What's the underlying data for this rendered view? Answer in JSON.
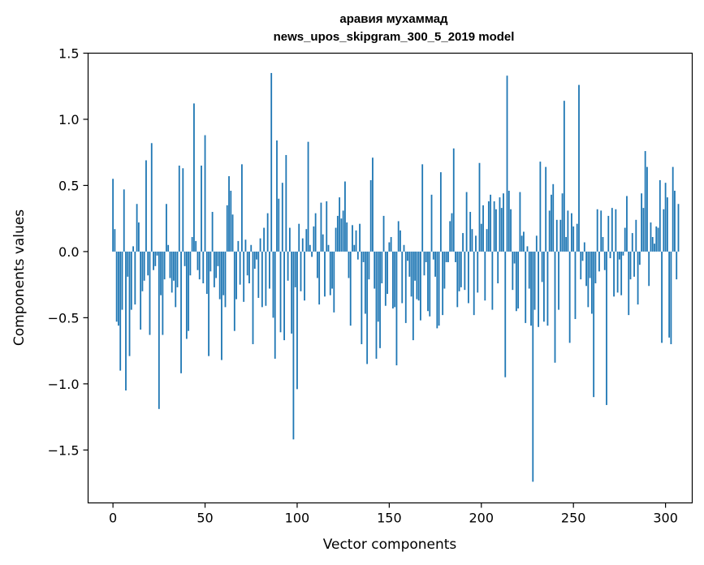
{
  "chart_data": {
    "type": "bar",
    "title": "аравия мухаммад",
    "subtitle": "news_upos_skipgram_300_5_2019 model",
    "xlabel": "Vector components",
    "ylabel": "Components values",
    "xlim": [
      -13.5,
      314.5
    ],
    "ylim": [
      -1.9,
      1.5
    ],
    "xticks": [
      0,
      50,
      100,
      150,
      200,
      250,
      300
    ],
    "xtick_labels": [
      "0",
      "50",
      "100",
      "150",
      "200",
      "250",
      "300"
    ],
    "yticks": [
      -1.5,
      -1.0,
      -0.5,
      0.0,
      0.5,
      1.0,
      1.5
    ],
    "ytick_labels": [
      "−1.5",
      "−1.0",
      "−0.5",
      "0.0",
      "0.5",
      "1.0",
      "1.5"
    ],
    "bar_color": "#1f77b4",
    "grid": false,
    "values": [
      0.55,
      0.17,
      -0.53,
      -0.56,
      -0.9,
      -0.44,
      0.47,
      -1.05,
      -0.19,
      -0.79,
      -0.44,
      0.04,
      -0.4,
      0.36,
      0.22,
      -0.59,
      -0.3,
      -0.22,
      0.69,
      -0.18,
      -0.63,
      0.82,
      -0.14,
      -0.11,
      -0.03,
      -1.19,
      -0.33,
      -0.63,
      -0.21,
      0.36,
      0.05,
      -0.2,
      -0.31,
      -0.22,
      -0.42,
      -0.27,
      0.65,
      -0.92,
      0.63,
      -0.11,
      -0.66,
      -0.6,
      -0.18,
      0.11,
      1.12,
      0.08,
      -0.14,
      -0.21,
      0.65,
      -0.24,
      0.88,
      -0.32,
      -0.79,
      -0.15,
      0.3,
      -0.27,
      -0.2,
      -0.11,
      -0.36,
      -0.82,
      -0.33,
      -0.42,
      0.35,
      0.57,
      0.46,
      0.28,
      -0.6,
      -0.36,
      0.08,
      -0.25,
      0.66,
      -0.38,
      0.09,
      -0.18,
      -0.24,
      0.05,
      -0.7,
      -0.13,
      -0.06,
      -0.35,
      0.1,
      -0.42,
      0.18,
      -0.41,
      0.29,
      -0.28,
      1.35,
      -0.5,
      -0.81,
      0.84,
      0.4,
      -0.61,
      0.52,
      -0.67,
      0.73,
      -0.22,
      0.18,
      -0.62,
      -1.42,
      -0.27,
      -1.04,
      0.21,
      -0.3,
      0.1,
      -0.37,
      0.17,
      0.83,
      0.05,
      -0.04,
      0.19,
      0.29,
      -0.2,
      -0.4,
      0.37,
      0.13,
      -0.34,
      0.38,
      0.05,
      -0.33,
      -0.28,
      -0.46,
      0.18,
      0.27,
      0.41,
      0.25,
      0.31,
      0.53,
      0.22,
      -0.2,
      -0.56,
      0.2,
      0.05,
      0.16,
      -0.06,
      0.21,
      -0.7,
      -0.08,
      -0.47,
      -0.85,
      -0.21,
      0.54,
      0.71,
      -0.28,
      -0.81,
      -0.53,
      -0.73,
      -0.24,
      0.27,
      -0.41,
      -0.32,
      0.07,
      0.11,
      -0.43,
      -0.42,
      -0.86,
      0.23,
      0.16,
      -0.39,
      0.05,
      -0.54,
      -0.07,
      -0.19,
      -0.34,
      -0.67,
      -0.22,
      -0.36,
      -0.37,
      -0.52,
      0.66,
      -0.18,
      -0.08,
      -0.45,
      -0.49,
      0.43,
      -0.06,
      -0.19,
      -0.58,
      -0.56,
      0.6,
      -0.48,
      -0.28,
      -0.08,
      -0.08,
      0.23,
      0.29,
      0.78,
      -0.08,
      -0.42,
      -0.3,
      -0.27,
      0.14,
      -0.29,
      0.45,
      -0.39,
      0.3,
      0.17,
      -0.48,
      0.12,
      -0.31,
      0.67,
      0.21,
      0.35,
      -0.37,
      0.17,
      0.38,
      0.43,
      -0.44,
      0.38,
      0.32,
      -0.24,
      0.41,
      0.33,
      0.44,
      -0.95,
      1.33,
      0.46,
      0.32,
      -0.29,
      -0.09,
      -0.45,
      -0.43,
      0.45,
      0.12,
      0.15,
      -0.54,
      0.04,
      -0.28,
      -0.56,
      -1.74,
      -0.44,
      0.12,
      -0.57,
      0.68,
      -0.23,
      -0.53,
      0.64,
      -0.56,
      0.31,
      0.43,
      0.51,
      -0.84,
      0.24,
      -0.44,
      0.24,
      0.44,
      1.14,
      0.11,
      0.31,
      -0.69,
      0.29,
      0.19,
      -0.51,
      0.21,
      1.26,
      -0.21,
      -0.07,
      0.07,
      -0.26,
      -0.42,
      -0.2,
      -0.47,
      -1.1,
      -0.24,
      0.32,
      -0.15,
      0.31,
      0.11,
      -0.14,
      -1.16,
      0.27,
      -0.05,
      0.33,
      -0.34,
      0.32,
      -0.31,
      -0.06,
      -0.33,
      -0.03,
      0.18,
      0.42,
      -0.48,
      -0.21,
      0.14,
      -0.19,
      0.24,
      -0.4,
      -0.1,
      0.44,
      0.33,
      0.76,
      0.64,
      -0.26,
      0.22,
      0.11,
      0.06,
      0.19,
      0.18,
      0.54,
      -0.69,
      0.32,
      0.52,
      0.41,
      -0.65,
      -0.7,
      0.64,
      0.46,
      -0.21,
      0.36
    ]
  }
}
